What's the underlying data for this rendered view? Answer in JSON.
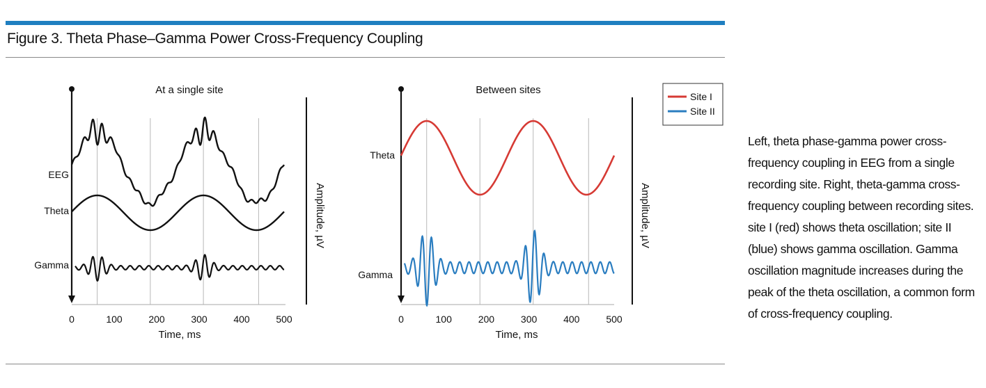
{
  "figure": {
    "title": "Figure 3. Theta Phase–Gamma Power Cross-Frequency Coupling",
    "caption": "Left, theta phase-gamma power cross-frequency coupling in EEG from a single recording site. Right, theta-gamma cross-frequency coupling between recording sites. site I (red) shows theta oscillation; site II (blue) shows gamma oscillation. Gamma oscillation magnitude increases during the peak of the theta oscillation, a common form of cross-frequency coupling.",
    "colors": {
      "accent_rule": "#1f7fc0",
      "site1": "#d63a34",
      "site2": "#2a7dc0",
      "ink": "#111111"
    }
  },
  "chart_data": [
    {
      "type": "line",
      "title": "At a single site",
      "xlabel": "Time, ms",
      "ylabel": "Amplitude, µV",
      "xlim": [
        0,
        500
      ],
      "xticks": [
        "0",
        "100",
        "200",
        "300",
        "400",
        "500"
      ],
      "vertical_gridlines_ms": [
        60,
        185,
        310,
        440
      ],
      "series": [
        {
          "name": "EEG",
          "description": "theta + gamma sum"
        },
        {
          "name": "Theta",
          "theta_peaks_ms": [
            60,
            310
          ],
          "theta_troughs_ms": [
            185,
            440
          ]
        },
        {
          "name": "Gamma",
          "bursts_at_ms": [
            60,
            310
          ]
        }
      ]
    },
    {
      "type": "line",
      "title": "Between sites",
      "xlabel": "Time, ms",
      "ylabel": "Amplitude, µV",
      "xlim": [
        0,
        500
      ],
      "xticks": [
        "0",
        "100",
        "200",
        "300",
        "400",
        "500"
      ],
      "vertical_gridlines_ms": [
        60,
        185,
        310,
        440
      ],
      "legend": {
        "position": "top-right",
        "items": [
          "Site I",
          "Site II"
        ]
      },
      "series": [
        {
          "name": "Theta",
          "site": "Site I",
          "color": "#d63a34",
          "theta_peaks_ms": [
            60,
            310
          ],
          "theta_troughs_ms": [
            185,
            440
          ]
        },
        {
          "name": "Gamma",
          "site": "Site II",
          "color": "#2a7dc0",
          "bursts_at_ms": [
            60,
            310
          ]
        }
      ]
    }
  ]
}
